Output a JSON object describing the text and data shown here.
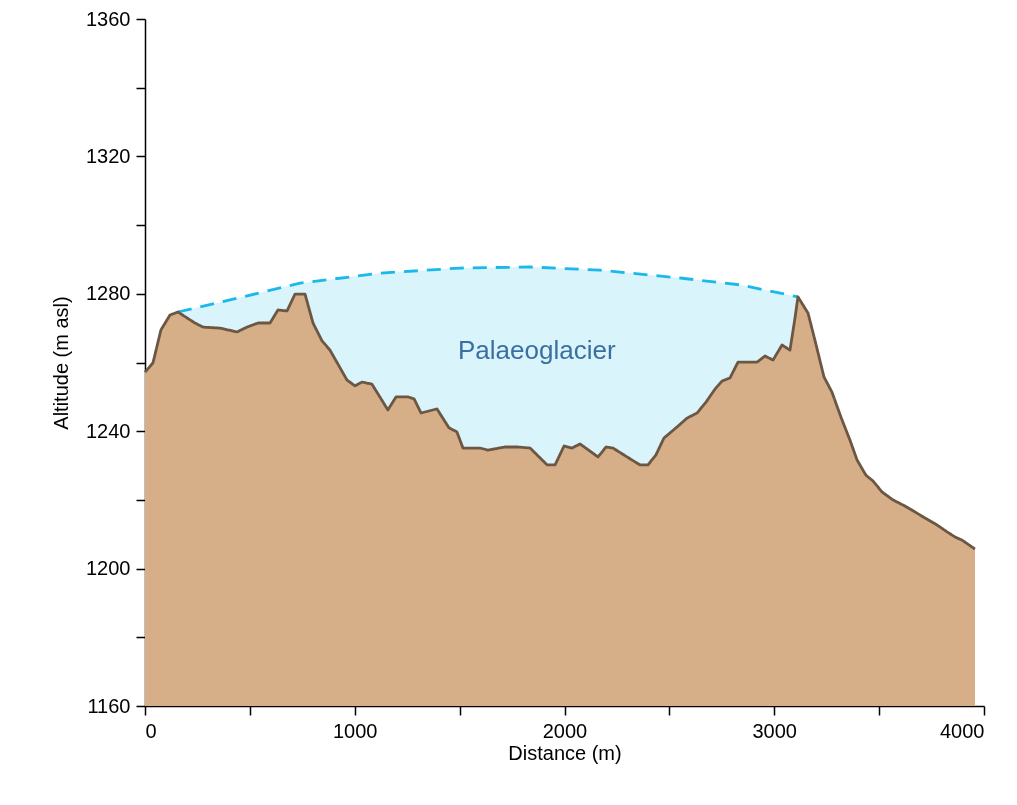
{
  "chart_data": {
    "type": "area",
    "xlabel": "Distance (m)",
    "ylabel": "Altitude (m asl)",
    "xlim": [
      0,
      4000
    ],
    "ylim": [
      1160,
      1360
    ],
    "xticks": [
      0,
      {
        "value": 500,
        "label": null
      },
      1000,
      {
        "value": 1500,
        "label": null
      },
      2000,
      {
        "value": 2500,
        "label": null
      },
      3000,
      {
        "value": 3500,
        "label": null
      },
      4000
    ],
    "yticks": [
      1160,
      {
        "value": 1180,
        "label": null
      },
      1200,
      {
        "value": 1220,
        "label": null
      },
      1240,
      {
        "value": 1260,
        "label": null
      },
      1280,
      {
        "value": 1300,
        "label": null
      },
      1320,
      {
        "value": 1340,
        "label": null
      },
      1360
    ],
    "grid": false,
    "annotations": [
      "Palaeoglacier"
    ],
    "series": [
      {
        "color": "#1ab8eb",
        "line_style": "dashed",
        "x": [
          157,
          405,
          739,
          1120,
          1502,
          1836,
          2169,
          2551,
          2837,
          3113
        ],
        "values": [
          1274.7,
          1278.2,
          1283.1,
          1286.0,
          1287.5,
          1287.8,
          1286.9,
          1284.6,
          1282.6,
          1279.1
        ]
      },
      {
        "color": "#d6ae88",
        "line_style": "solid",
        "x": [
          0,
          38,
          76,
          119,
          157,
          238,
          277,
          358,
          439,
          486,
          539,
          596,
          634,
          677,
          715,
          763,
          801,
          844,
          882,
          963,
          1001,
          1035,
          1082,
          1158,
          1197,
          1254,
          1283,
          1316,
          1392,
          1449,
          1487,
          1516,
          1597,
          1635,
          1716,
          1778,
          1836,
          1917,
          1955,
          1998,
          2036,
          2074,
          2160,
          2198,
          2231,
          2322,
          2360,
          2398,
          2436,
          2474,
          2532,
          2584,
          2632,
          2675,
          2718,
          2751,
          2789,
          2827,
          2875,
          2918,
          2956,
          2994,
          3037,
          3075,
          3099,
          3113,
          3161,
          3194,
          3237,
          3275,
          3318,
          3361,
          3395,
          3437,
          3471,
          3514,
          3566,
          3614,
          3671,
          3719,
          3776,
          3824,
          3862,
          3895,
          3957
        ],
        "values": [
          1257.2,
          1259.9,
          1269.5,
          1273.8,
          1274.7,
          1271.5,
          1270.3,
          1270.0,
          1268.9,
          1270.3,
          1271.5,
          1271.5,
          1275.3,
          1275.0,
          1279.9,
          1279.9,
          1271.5,
          1266.3,
          1263.6,
          1254.9,
          1253.2,
          1254.3,
          1253.7,
          1246.2,
          1250.0,
          1250.0,
          1249.4,
          1245.3,
          1246.5,
          1241.0,
          1239.8,
          1235.1,
          1235.1,
          1234.5,
          1235.4,
          1235.4,
          1235.1,
          1230.2,
          1230.2,
          1235.7,
          1235.1,
          1236.3,
          1232.5,
          1235.4,
          1235.1,
          1231.6,
          1230.2,
          1230.2,
          1233.1,
          1238.0,
          1241.0,
          1243.8,
          1245.3,
          1248.5,
          1252.3,
          1254.6,
          1255.5,
          1260.1,
          1260.1,
          1260.1,
          1261.9,
          1260.7,
          1265.1,
          1263.6,
          1273.0,
          1279.1,
          1274.4,
          1266.5,
          1255.8,
          1251.4,
          1244.1,
          1237.4,
          1231.6,
          1227.2,
          1225.5,
          1222.3,
          1220.0,
          1218.5,
          1216.5,
          1214.7,
          1212.7,
          1210.7,
          1209.2,
          1208.3,
          1205.7
        ]
      }
    ]
  }
}
